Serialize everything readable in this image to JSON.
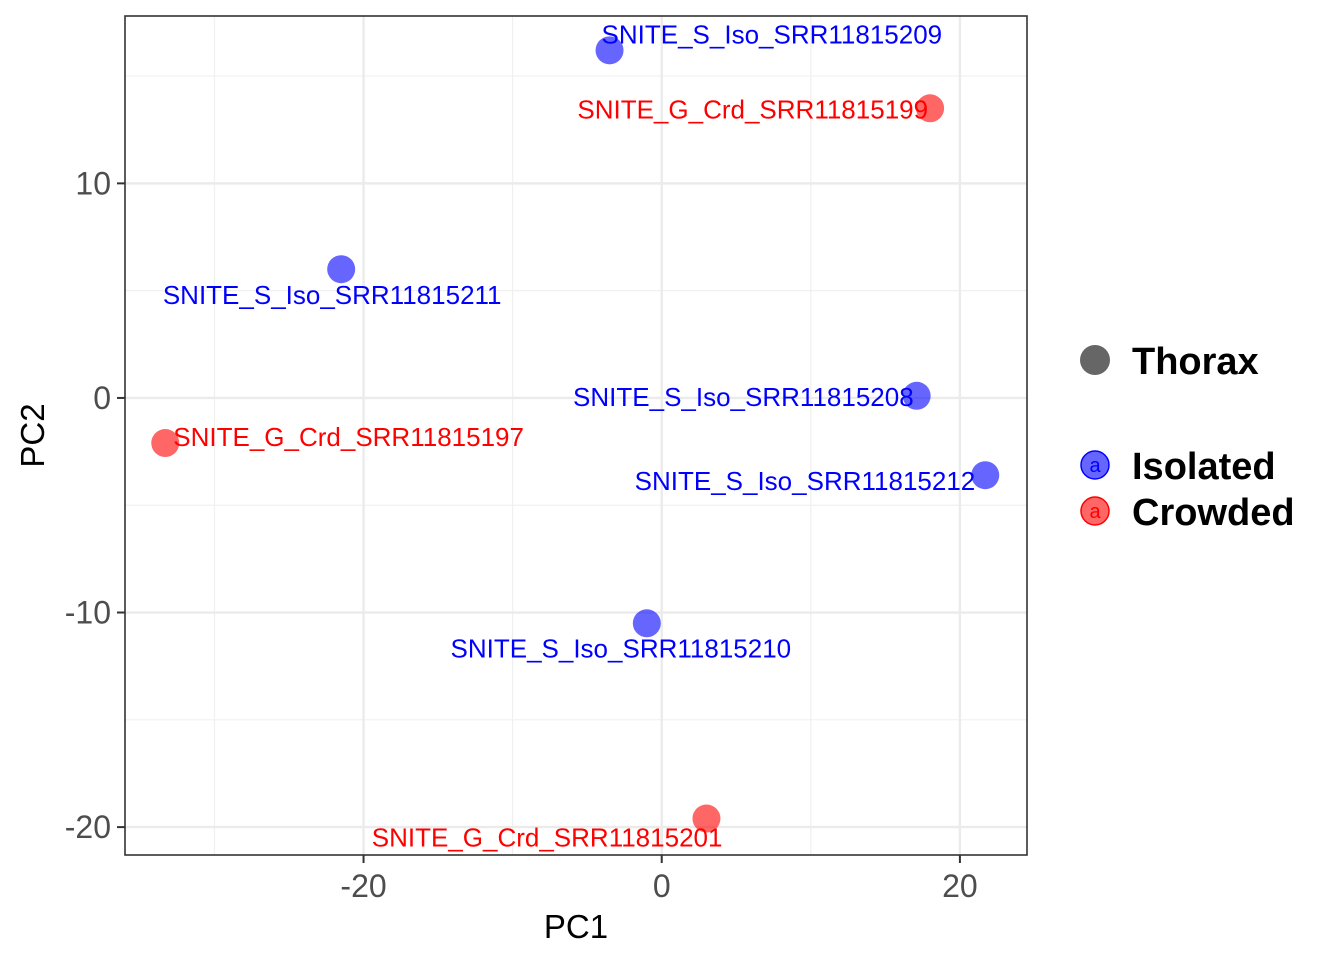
{
  "chart_data": {
    "type": "scatter",
    "title": "",
    "xlabel": "PC1",
    "ylabel": "PC2",
    "xlim": [
      -36,
      24.5
    ],
    "ylim": [
      -21.3,
      17.8
    ],
    "x_ticks": [
      -20,
      0,
      20
    ],
    "x_tick_labels": [
      "-20",
      "0",
      "20"
    ],
    "y_ticks": [
      -20,
      -10,
      0,
      10
    ],
    "y_tick_labels": [
      "-20",
      "-10",
      "0",
      "10"
    ],
    "x_minor_ticks": [
      -30,
      -10,
      10
    ],
    "y_minor_ticks": [
      -15,
      -5,
      5,
      15
    ],
    "grid": true,
    "shape_legend": {
      "items": [
        {
          "label": "Thorax",
          "color": "#666666"
        }
      ]
    },
    "color_legend": {
      "key_glyph": "a",
      "items": [
        {
          "label": "Isolated",
          "color": "#0000FF"
        },
        {
          "label": "Crowded",
          "color": "#FF0000"
        }
      ]
    },
    "legend_position": "right",
    "points": [
      {
        "label": "SNITE_S_Iso_SRR11815209",
        "x": -3.5,
        "y": 16.2,
        "group": "Isolated",
        "label_pos": "right"
      },
      {
        "label": "SNITE_G_Crd_SRR11815199",
        "x": 18.0,
        "y": 13.5,
        "group": "Crowded",
        "label_pos": "left"
      },
      {
        "label": "SNITE_S_Iso_SRR11815211",
        "x": -21.5,
        "y": 6.0,
        "group": "Isolated",
        "label_pos": "below"
      },
      {
        "label": "SNITE_S_Iso_SRR11815208",
        "x": 17.1,
        "y": 0.1,
        "group": "Isolated",
        "label_pos": "left"
      },
      {
        "label": "SNITE_G_Crd_SRR11815197",
        "x": -33.3,
        "y": -2.1,
        "group": "Crowded",
        "label_pos": "right"
      },
      {
        "label": "SNITE_S_Iso_SRR11815212",
        "x": 21.7,
        "y": -3.6,
        "group": "Isolated",
        "label_pos": "left"
      },
      {
        "label": "SNITE_S_Iso_SRR11815210",
        "x": -1.0,
        "y": -10.5,
        "group": "Isolated",
        "label_pos": "below"
      },
      {
        "label": "SNITE_G_Crd_SRR11815201",
        "x": 3.0,
        "y": -19.6,
        "group": "Crowded",
        "label_pos": "left"
      }
    ]
  }
}
